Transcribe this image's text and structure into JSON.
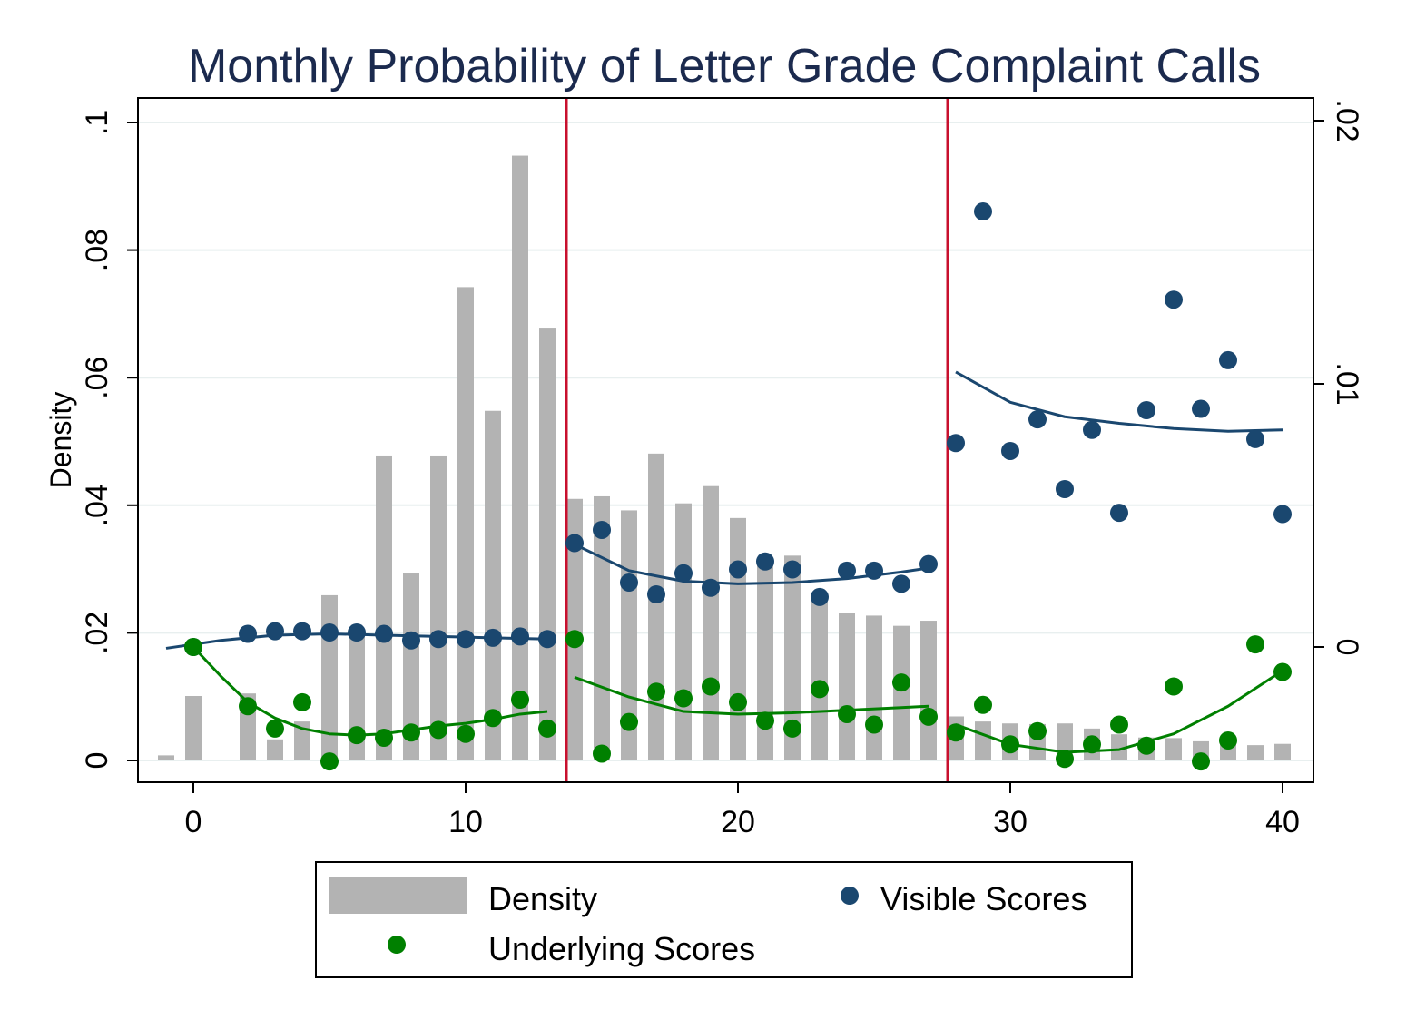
{
  "chart_data": {
    "type": "bar",
    "title": "Monthly Probability of Letter Grade Complaint Calls",
    "ylabel": "Density",
    "xlim": [
      -2,
      41
    ],
    "ylim_left": [
      0,
      0.1
    ],
    "ylim_right": [
      -0.005,
      0.02
    ],
    "x_ticks": [
      0,
      10,
      20,
      30,
      40
    ],
    "x_tick_labels": [
      "0",
      "10",
      "20",
      "30",
      "40"
    ],
    "y_left_ticks": [
      0,
      0.02,
      0.04,
      0.06,
      0.08,
      0.1
    ],
    "y_left_tick_labels": [
      "0",
      ".02",
      ".04",
      ".06",
      ".08",
      ".1"
    ],
    "y_right_ticks": [
      0,
      0.01,
      0.02
    ],
    "y_right_tick_labels": [
      "0",
      ".01",
      ".02"
    ],
    "grid": true,
    "cutoff_lines_x": [
      13.5,
      27.5
    ],
    "colors": {
      "density": "#b3b3b3",
      "visible": "#1a476f",
      "underlying": "#008000",
      "cutoff": "#c8102e",
      "title": "#1b2a4e",
      "grid": "#e8efef"
    },
    "density": {
      "name": "Density",
      "x": [
        -1,
        0,
        1,
        2,
        3,
        4,
        5,
        6,
        7,
        8,
        9,
        10,
        11,
        12,
        13,
        14,
        15,
        16,
        17,
        18,
        19,
        20,
        21,
        22,
        23,
        24,
        25,
        26,
        27,
        28,
        29,
        30,
        31,
        32,
        33,
        34,
        35,
        36,
        37,
        38,
        39,
        40
      ],
      "values": [
        0.0008,
        0.0101,
        0,
        0.0105,
        0.0033,
        0.0061,
        0.0259,
        0.0202,
        0.0478,
        0.0293,
        0.0478,
        0.0742,
        0.0548,
        0.0948,
        0.0677,
        0.041,
        0.0414,
        0.0392,
        0.0481,
        0.0403,
        0.043,
        0.038,
        0.0314,
        0.0321,
        0.0252,
        0.0231,
        0.0227,
        0.0211,
        0.0219,
        0.0069,
        0.0061,
        0.0058,
        0.0057,
        0.0058,
        0.005,
        0.0041,
        0.0036,
        0.0035,
        0.003,
        0.0035,
        0.0024,
        0.0026
      ]
    },
    "visible": {
      "name": "Visible Scores",
      "x": [
        0,
        2,
        3,
        4,
        5,
        6,
        7,
        8,
        9,
        10,
        11,
        12,
        13,
        14,
        15,
        16,
        17,
        18,
        19,
        20,
        21,
        22,
        23,
        24,
        25,
        26,
        27,
        28,
        29,
        30,
        31,
        32,
        33,
        34,
        35,
        36,
        37,
        38,
        39,
        40
      ],
      "y": [
        -0.0,
        0.0005,
        0.0006,
        0.0006,
        0.00055,
        0.00055,
        0.0005,
        0.00025,
        0.0003,
        0.0003,
        0.00035,
        0.0004,
        0.0003,
        0.00395,
        0.00445,
        0.00245,
        0.002,
        0.0028,
        0.00225,
        0.00295,
        0.00325,
        0.00295,
        0.0019,
        0.0029,
        0.0029,
        0.0024,
        0.00315,
        0.00775,
        0.01655,
        0.00745,
        0.00865,
        0.006,
        0.00825,
        0.0051,
        0.009,
        0.0132,
        0.00905,
        0.0109,
        0.0079,
        0.00505
      ]
    },
    "visible_fit": [
      {
        "x": [
          -1,
          1,
          3,
          5,
          7,
          9,
          11,
          13
        ],
        "y": [
          -5e-05,
          0.00025,
          0.00045,
          0.0005,
          0.00045,
          0.0004,
          0.00035,
          0.0003
        ]
      },
      {
        "x": [
          14,
          16,
          18,
          20,
          22,
          24,
          26,
          27
        ],
        "y": [
          0.0039,
          0.0029,
          0.0025,
          0.0024,
          0.00245,
          0.0026,
          0.00285,
          0.003
        ]
      },
      {
        "x": [
          28,
          30,
          32,
          34,
          36,
          38,
          40
        ],
        "y": [
          0.01045,
          0.0093,
          0.00875,
          0.0085,
          0.0083,
          0.0082,
          0.00825
        ]
      }
    ],
    "underlying": {
      "name": "Underlying Scores",
      "x": [
        0,
        2,
        3,
        4,
        5,
        6,
        7,
        8,
        9,
        10,
        11,
        12,
        13,
        14,
        15,
        16,
        17,
        18,
        19,
        20,
        21,
        22,
        23,
        24,
        25,
        26,
        27,
        28,
        29,
        30,
        31,
        32,
        33,
        34,
        35,
        36,
        37,
        38,
        39,
        40
      ],
      "y": [
        0.0,
        -0.00225,
        -0.0031,
        -0.0021,
        -0.00435,
        -0.00335,
        -0.00345,
        -0.00325,
        -0.00315,
        -0.0033,
        -0.0027,
        -0.002,
        -0.0031,
        0.0003,
        -0.00405,
        -0.00285,
        -0.0017,
        -0.00195,
        -0.0015,
        -0.0021,
        -0.0028,
        -0.0031,
        -0.0016,
        -0.00255,
        -0.00295,
        -0.00135,
        -0.00265,
        -0.00325,
        -0.0022,
        -0.0037,
        -0.0032,
        -0.00425,
        -0.0037,
        -0.00295,
        -0.00375,
        -0.0015,
        -0.00435,
        -0.00355,
        0.0001,
        -0.00095
      ]
    },
    "underlying_fit": [
      {
        "x": [
          0,
          1,
          2,
          3,
          4,
          5,
          6,
          7,
          8,
          9,
          10,
          11,
          12,
          13
        ],
        "y": [
          0.0,
          -0.0011,
          -0.0021,
          -0.0027,
          -0.0031,
          -0.0033,
          -0.00335,
          -0.0033,
          -0.00315,
          -0.003,
          -0.0029,
          -0.00275,
          -0.00255,
          -0.00245
        ]
      },
      {
        "x": [
          14,
          16,
          18,
          20,
          22,
          24,
          26,
          27
        ],
        "y": [
          -0.00115,
          -0.0019,
          -0.00245,
          -0.00255,
          -0.0025,
          -0.0024,
          -0.0023,
          -0.00225
        ]
      },
      {
        "x": [
          28,
          30,
          32,
          34,
          36,
          38,
          40
        ],
        "y": [
          -0.00295,
          -0.0037,
          -0.004,
          -0.0039,
          -0.0033,
          -0.00225,
          -0.0009
        ]
      }
    ]
  },
  "legend": {
    "density_label": "Density",
    "visible_label": "Visible Scores",
    "underlying_label": "Underlying Scores"
  }
}
